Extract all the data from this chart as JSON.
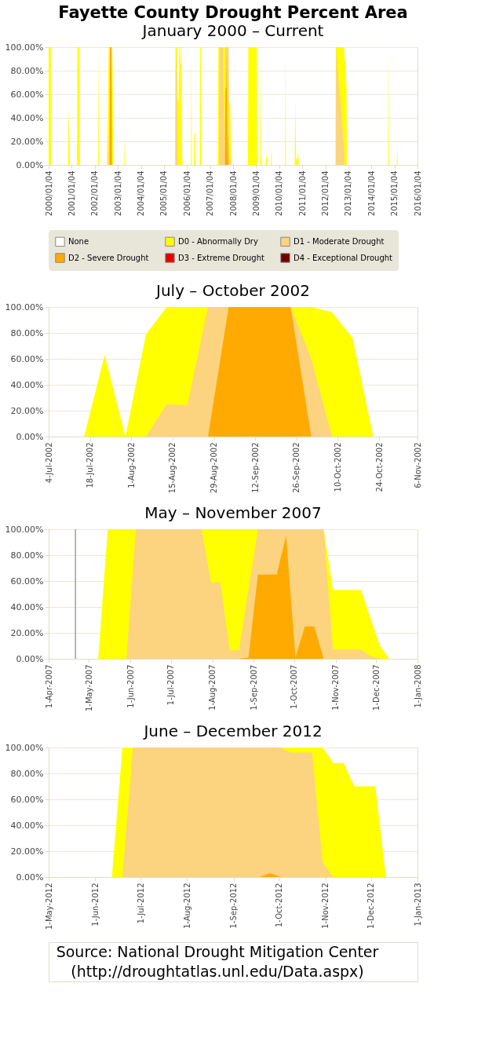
{
  "chart_data": [
    {
      "type": "area",
      "title": "Fayette County Drought Percent Area",
      "subtitle": "January 2000 – Current",
      "xlim": [
        "2000-01-04",
        "2016-01-04"
      ],
      "xticks": [
        {
          "value": "2000-01-04",
          "label": "2000/01/04"
        },
        {
          "value": "2001-01-04",
          "label": "2001/01/04"
        },
        {
          "value": "2002-01-04",
          "label": "2002/01/04"
        },
        {
          "value": "2003-01-04",
          "label": "2003/01/04"
        },
        {
          "value": "2004-01-04",
          "label": "2004/01/04"
        },
        {
          "value": "2005-01-04",
          "label": "2005/01/04"
        },
        {
          "value": "2006-01-04",
          "label": "2006/01/04"
        },
        {
          "value": "2007-01-04",
          "label": "2007/01/04"
        },
        {
          "value": "2008-01-04",
          "label": "2008/01/04"
        },
        {
          "value": "2009-01-04",
          "label": "2009/01/04"
        },
        {
          "value": "2010-01-04",
          "label": "2010/01/04"
        },
        {
          "value": "2011-01-04",
          "label": "2011/01/04"
        },
        {
          "value": "2012-01-04",
          "label": "2012/01/04"
        },
        {
          "value": "2013-01-04",
          "label": "2013/01/04"
        },
        {
          "value": "2014-01-04",
          "label": "2014/01/04"
        },
        {
          "value": "2015-01-04",
          "label": "2015/01/04"
        },
        {
          "value": "2016-01-04",
          "label": "2016/01/04"
        }
      ],
      "ylim": [
        0,
        100
      ],
      "yticks": [
        {
          "value": 0,
          "label": "0.00%"
        },
        {
          "value": 20,
          "label": "20.00%"
        },
        {
          "value": 40,
          "label": "40.00%"
        },
        {
          "value": 60,
          "label": "60.00%"
        },
        {
          "value": 80,
          "label": "80.00%"
        },
        {
          "value": 100,
          "label": "100.00%"
        }
      ],
      "grid": "y",
      "legend": "bottom",
      "series": [
        {
          "name": "None",
          "color": "#ffffff"
        },
        {
          "name": "D0 - Abnormally Dry",
          "color": "#ffff00",
          "x": [
            "2000-01-04",
            "2000-02-08",
            "2000-02-15",
            "2000-11-07",
            "2000-11-14",
            "2000-11-28",
            "2000-12-05",
            "2001-03-27",
            "2001-04-03",
            "2001-05-08",
            "2001-05-15",
            "2002-02-26",
            "2002-03-05",
            "2002-03-12",
            "2002-07-16",
            "2002-07-23",
            "2002-07-30",
            "2002-08-06",
            "2002-08-13",
            "2002-10-01",
            "2002-10-08",
            "2002-10-15",
            "2002-10-22",
            "2003-04-15",
            "2003-04-22",
            "2003-04-29",
            "2005-06-28",
            "2005-07-05",
            "2005-08-02",
            "2005-08-09",
            "2005-08-23",
            "2005-09-06",
            "2005-09-20",
            "2005-09-27",
            "2005-10-11",
            "2005-10-18",
            "2005-10-25",
            "2006-03-07",
            "2006-03-14",
            "2006-03-21",
            "2006-04-25",
            "2006-05-02",
            "2006-05-16",
            "2006-05-23",
            "2006-07-25",
            "2006-08-01",
            "2006-08-15",
            "2006-08-22",
            "2007-05-08",
            "2007-05-15",
            "2007-10-23",
            "2007-10-30",
            "2007-11-20",
            "2007-12-04",
            "2007-12-11",
            "2008-08-26",
            "2008-09-02",
            "2009-01-13",
            "2009-01-20",
            "2009-03-03",
            "2009-03-10",
            "2009-03-17",
            "2009-03-24",
            "2009-06-02",
            "2009-06-09",
            "2009-06-23",
            "2009-06-30",
            "2009-08-25",
            "2009-09-01",
            "2009-09-08",
            "2010-04-06",
            "2010-04-13",
            "2010-04-20",
            "2010-09-07",
            "2010-09-14",
            "2010-09-28",
            "2010-10-19",
            "2010-10-26",
            "2010-11-02",
            "2010-11-09",
            "2012-06-12",
            "2012-06-19",
            "2012-10-30",
            "2012-11-06",
            "2012-11-20",
            "2012-11-27",
            "2012-12-04",
            "2012-12-11",
            "2014-09-23",
            "2014-09-30",
            "2014-10-07",
            "2015-02-10",
            "2015-02-17",
            "2015-02-24"
          ],
          "values": [
            100,
            100,
            0,
            0,
            48,
            25,
            0,
            0,
            100,
            100,
            0,
            0,
            100,
            0,
            0,
            63,
            0,
            79,
            100,
            100,
            96,
            76,
            0,
            0,
            22,
            0,
            0,
            100,
            100,
            55,
            55,
            100,
            100,
            85,
            86,
            10,
            0,
            0,
            100,
            0,
            0,
            27,
            27,
            0,
            0,
            100,
            100,
            0,
            0,
            100,
            100,
            53,
            53,
            10,
            0,
            0,
            100,
            100,
            0,
            0,
            100,
            10,
            0,
            0,
            7,
            7,
            0,
            0,
            17,
            0,
            0,
            100,
            0,
            0,
            55,
            5,
            5,
            10,
            10,
            0,
            0,
            100,
            100,
            88,
            88,
            70,
            70,
            0,
            0,
            100,
            0,
            0,
            16,
            0
          ]
        },
        {
          "name": "D1 - Moderate Drought",
          "color": "#fcd37f",
          "x": [
            "2002-08-06",
            "2002-08-13",
            "2002-08-20",
            "2002-08-27",
            "2002-09-24",
            "2002-10-01",
            "2002-10-08",
            "2005-07-05",
            "2005-07-12",
            "2005-08-02",
            "2005-08-09",
            "2007-05-29",
            "2007-06-05",
            "2007-07-24",
            "2007-08-21",
            "2007-09-04",
            "2007-10-23",
            "2007-10-30",
            "2007-11-20",
            "2007-11-27",
            "2012-06-19",
            "2012-06-26",
            "2012-10-30",
            "2012-11-06"
          ],
          "values": [
            0,
            25,
            24,
            100,
            100,
            60,
            0,
            0,
            100,
            50,
            0,
            0,
            100,
            100,
            0,
            100,
            100,
            7,
            7,
            0,
            0,
            100,
            12,
            0
          ]
        },
        {
          "name": "D2 - Severe Drought",
          "color": "#ffaa00",
          "x": [
            "2002-08-27",
            "2002-09-03",
            "2002-09-24",
            "2002-10-01",
            "2007-08-28",
            "2007-09-04",
            "2007-09-18",
            "2007-09-25",
            "2007-10-02",
            "2007-10-09",
            "2007-10-16",
            "2007-10-23"
          ],
          "values": [
            0,
            100,
            100,
            0,
            0,
            65,
            65,
            95,
            0,
            25,
            25,
            0
          ]
        },
        {
          "name": "D3 - Extreme Drought",
          "color": "#e60000"
        },
        {
          "name": "D4 - Exceptional Drought",
          "color": "#730000"
        }
      ]
    },
    {
      "type": "area",
      "title": "July – October 2002",
      "xlim": [
        "2002-07-04",
        "2002-11-06"
      ],
      "xticks": [
        {
          "value": "2002-07-04",
          "label": "4-Jul-2002"
        },
        {
          "value": "2002-07-18",
          "label": "18-Jul-2002"
        },
        {
          "value": "2002-08-01",
          "label": "1-Aug-2002"
        },
        {
          "value": "2002-08-15",
          "label": "15-Aug-2002"
        },
        {
          "value": "2002-08-29",
          "label": "29-Aug-2002"
        },
        {
          "value": "2002-09-12",
          "label": "12-Sep-2002"
        },
        {
          "value": "2002-09-26",
          "label": "26-Sep-2002"
        },
        {
          "value": "2002-10-10",
          "label": "10-Oct-2002"
        },
        {
          "value": "2002-10-24",
          "label": "24-Oct-2002"
        },
        {
          "value": "2002-11-06",
          "label": "6-Nov-2002"
        }
      ],
      "ylim": [
        0,
        100
      ],
      "yticks": [
        {
          "value": 0,
          "label": "0.00%"
        },
        {
          "value": 20,
          "label": "20.00%"
        },
        {
          "value": 40,
          "label": "40.00%"
        },
        {
          "value": 60,
          "label": "60.00%"
        },
        {
          "value": 80,
          "label": "80.00%"
        },
        {
          "value": 100,
          "label": "100.00%"
        }
      ],
      "grid": "y",
      "series": [
        {
          "color": "#ffff00",
          "x": [
            "2002-07-16",
            "2002-07-23",
            "2002-07-30",
            "2002-08-06",
            "2002-08-13",
            "2002-08-20",
            "2002-08-27",
            "2002-09-03",
            "2002-09-10",
            "2002-09-17",
            "2002-09-24",
            "2002-10-01",
            "2002-10-08",
            "2002-10-15",
            "2002-10-22",
            "2002-10-29"
          ],
          "values": [
            0,
            63,
            0,
            79,
            100,
            100,
            100,
            100,
            100,
            100,
            100,
            100,
            96,
            76,
            0,
            0
          ]
        },
        {
          "color": "#fcd37f",
          "x": [
            "2002-08-06",
            "2002-08-13",
            "2002-08-20",
            "2002-08-27",
            "2002-09-03",
            "2002-09-10",
            "2002-09-17",
            "2002-09-24",
            "2002-10-01",
            "2002-10-08"
          ],
          "values": [
            0,
            25,
            24,
            100,
            100,
            100,
            100,
            100,
            60,
            0
          ]
        },
        {
          "color": "#ffaa00",
          "x": [
            "2002-08-27",
            "2002-09-03",
            "2002-09-10",
            "2002-09-17",
            "2002-09-24",
            "2002-10-01"
          ],
          "values": [
            0,
            100,
            100,
            100,
            100,
            0
          ]
        }
      ]
    },
    {
      "type": "area",
      "title": "May – November 2007",
      "xlim": [
        "2007-04-01",
        "2008-01-01"
      ],
      "xticks": [
        {
          "value": "2007-04-01",
          "label": "1-Apr-2007"
        },
        {
          "value": "2007-05-01",
          "label": "1-May-2007"
        },
        {
          "value": "2007-06-01",
          "label": "1-Jun-2007"
        },
        {
          "value": "2007-07-01",
          "label": "1-Jul-2007"
        },
        {
          "value": "2007-08-01",
          "label": "1-Aug-2007"
        },
        {
          "value": "2007-09-01",
          "label": "1-Sep-2007"
        },
        {
          "value": "2007-10-01",
          "label": "1-Oct-2007"
        },
        {
          "value": "2007-11-01",
          "label": "1-Nov-2007"
        },
        {
          "value": "2007-12-01",
          "label": "1-Dec-2007"
        },
        {
          "value": "2008-01-01",
          "label": "1-Jan-2008"
        }
      ],
      "ylim": [
        0,
        100
      ],
      "yticks": [
        {
          "value": 0,
          "label": "0.00%"
        },
        {
          "value": 20,
          "label": "20.00%"
        },
        {
          "value": 40,
          "label": "40.00%"
        },
        {
          "value": 60,
          "label": "60.00%"
        },
        {
          "value": 80,
          "label": "80.00%"
        },
        {
          "value": 100,
          "label": "100.00%"
        }
      ],
      "grid": "y",
      "ref_lines": [
        {
          "axis": "x",
          "value": "2007-04-21",
          "color": "#a0a0a0"
        }
      ],
      "series": [
        {
          "color": "#ffff00",
          "x": [
            "2007-05-08",
            "2007-05-15",
            "2007-10-23",
            "2007-10-30",
            "2007-11-20",
            "2007-11-27",
            "2007-12-04",
            "2007-12-11"
          ],
          "values": [
            0,
            100,
            100,
            53,
            53,
            31,
            10,
            0
          ]
        },
        {
          "color": "#fcd37f",
          "x": [
            "2007-05-29",
            "2007-06-05",
            "2007-07-24",
            "2007-07-31",
            "2007-08-07",
            "2007-08-14",
            "2007-08-21",
            "2007-08-28",
            "2007-09-04",
            "2007-10-23",
            "2007-10-30",
            "2007-11-20",
            "2007-11-27",
            "2007-12-04"
          ],
          "values": [
            0,
            100,
            100,
            59,
            59,
            6,
            7,
            53,
            100,
            100,
            7,
            7,
            2,
            0
          ]
        },
        {
          "color": "#ffaa00",
          "x": [
            "2007-08-21",
            "2007-08-28",
            "2007-09-04",
            "2007-09-18",
            "2007-09-25",
            "2007-10-02",
            "2007-10-09",
            "2007-10-16",
            "2007-10-23"
          ],
          "values": [
            0,
            1,
            65,
            65,
            95,
            1,
            25,
            25,
            0
          ]
        }
      ]
    },
    {
      "type": "area",
      "title": "June – December 2012",
      "xlim": [
        "2012-05-01",
        "2013-01-01"
      ],
      "xticks": [
        {
          "value": "2012-05-01",
          "label": "1-May-2012"
        },
        {
          "value": "2012-06-01",
          "label": "1-Jun-2012"
        },
        {
          "value": "2012-07-01",
          "label": "1-Jul-2012"
        },
        {
          "value": "2012-08-01",
          "label": "1-Aug-2012"
        },
        {
          "value": "2012-09-01",
          "label": "1-Sep-2012"
        },
        {
          "value": "2012-10-01",
          "label": "1-Oct-2012"
        },
        {
          "value": "2012-11-01",
          "label": "1-Nov-2012"
        },
        {
          "value": "2012-12-01",
          "label": "1-Dec-2012"
        },
        {
          "value": "2013-01-01",
          "label": "1-Jan-2013"
        }
      ],
      "ylim": [
        0,
        100
      ],
      "yticks": [
        {
          "value": 0,
          "label": "0.00%"
        },
        {
          "value": 20,
          "label": "20.00%"
        },
        {
          "value": 40,
          "label": "40.00%"
        },
        {
          "value": 60,
          "label": "60.00%"
        },
        {
          "value": 80,
          "label": "80.00%"
        },
        {
          "value": 100,
          "label": "100.00%"
        }
      ],
      "grid": "y",
      "annotations": [
        "Source: National Drought Mitigation Center",
        "(http://droughtatlas.unl.edu/Data.aspx)"
      ],
      "series": [
        {
          "color": "#ffff00",
          "x": [
            "2012-06-12",
            "2012-06-19",
            "2012-10-30",
            "2012-11-06",
            "2012-11-13",
            "2012-11-20",
            "2012-11-27",
            "2012-12-04",
            "2012-12-11"
          ],
          "values": [
            0,
            100,
            100,
            88,
            88,
            70,
            70,
            70,
            0
          ]
        },
        {
          "color": "#fcd37f",
          "x": [
            "2012-06-19",
            "2012-06-26",
            "2012-10-02",
            "2012-10-09",
            "2012-10-23",
            "2012-10-30",
            "2012-11-06"
          ],
          "values": [
            0,
            100,
            100,
            96,
            96,
            11,
            0
          ]
        },
        {
          "color": "#ffaa00",
          "x": [
            "2012-09-18",
            "2012-09-25",
            "2012-10-02"
          ],
          "values": [
            0,
            3,
            0
          ]
        }
      ]
    }
  ]
}
